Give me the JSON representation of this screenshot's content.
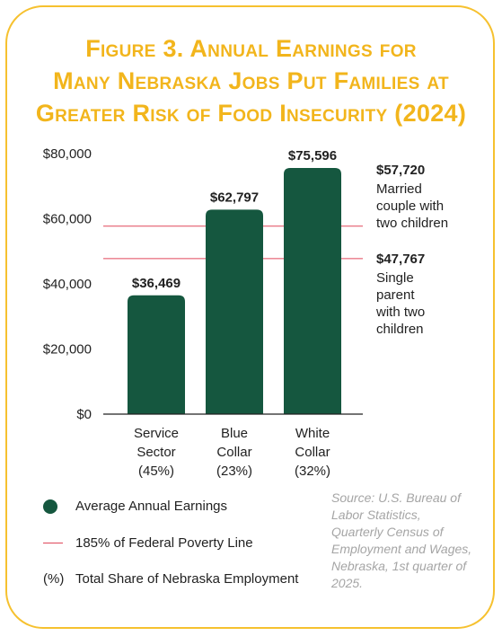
{
  "title_lines": [
    "Figure 3. Annual Earnings for",
    "Many Nebraska Jobs Put Families at",
    "Greater Risk of Food Insecurity (2024)"
  ],
  "colors": {
    "bar": "#15573f",
    "poverty_line": "#e0485a",
    "title": "#f2b51c",
    "border": "#f6c12f"
  },
  "chart_data": {
    "type": "bar",
    "categories": [
      [
        "Service",
        "Sector",
        "(45%)"
      ],
      [
        "Blue",
        "Collar",
        "(23%)"
      ],
      [
        "White",
        "Collar",
        "(32%)"
      ]
    ],
    "values": [
      36469,
      62797,
      75596
    ],
    "value_labels": [
      "$36,469",
      "$62,797",
      "$75,596"
    ],
    "ylim": [
      0,
      80000
    ],
    "yticks": [
      0,
      20000,
      40000,
      60000,
      80000
    ],
    "ytick_labels": [
      "$0",
      "$20,000",
      "$40,000",
      "$60,000",
      "$80,000"
    ],
    "reference_lines": [
      {
        "value": 57720,
        "label": "$57,720",
        "desc": [
          "Married",
          "couple with",
          "two children"
        ]
      },
      {
        "value": 47767,
        "label": "$47,767",
        "desc": [
          "Single",
          "parent",
          "with two",
          "children"
        ]
      }
    ]
  },
  "legend": {
    "earnings": "Average Annual Earnings",
    "poverty": "185% of Federal Poverty Line",
    "share_symbol": "(%)",
    "share": "Total Share of Nebraska Employment"
  },
  "source": "Source: U.S. Bureau of Labor Statistics, Quarterly Census of Employment and Wages, Nebraska, 1st quarter of 2025."
}
